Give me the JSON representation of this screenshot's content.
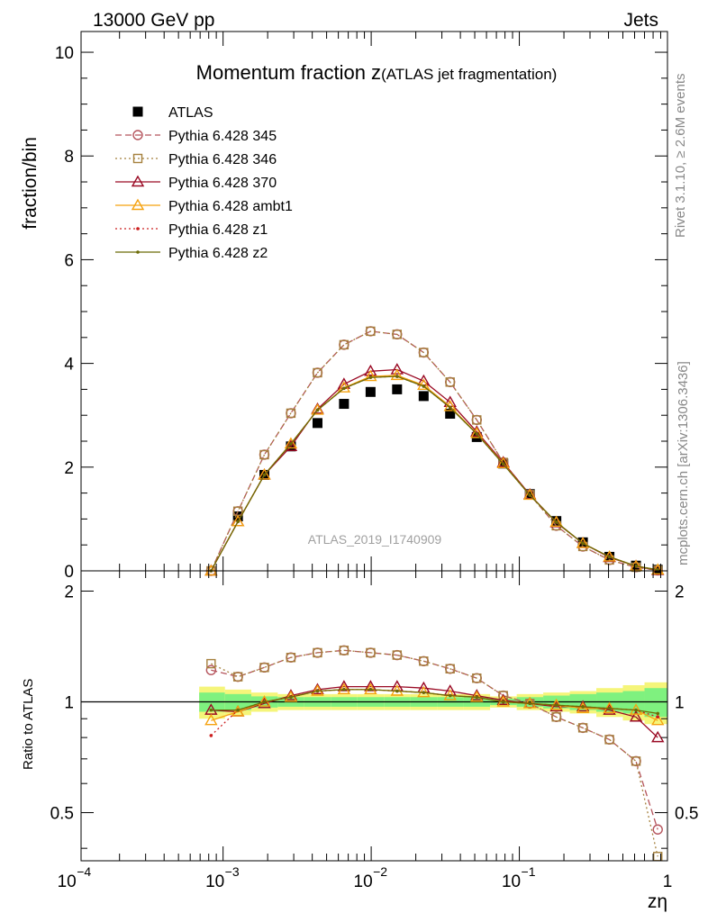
{
  "header": {
    "left": "13000 GeV pp",
    "right": "Jets"
  },
  "side_labels": {
    "rivet": "Rivet 3.1.10, ≥ 2.6M events",
    "mcplots": "mcplots.cern.ch [arXiv:1306.3436]"
  },
  "watermark": "ATLAS_2019_I1740909",
  "chart_data": [
    {
      "type": "scatter",
      "panel": "main",
      "title_main": "Momentum fraction z",
      "title_sub": "(ATLAS jet fragmentation)",
      "ylabel": "fraction/bin",
      "xlabel": "zη",
      "xscale": "log",
      "xlim": [
        0.00011,
        1.0
      ],
      "ylim": [
        0,
        10.4
      ],
      "yticks": [
        0,
        2,
        4,
        6,
        8,
        10
      ],
      "xticks": [
        {
          "value": 0.0001,
          "label": "10"
        },
        {
          "value": 0.001,
          "label": "10"
        },
        {
          "value": 0.01,
          "label": "10"
        },
        {
          "value": 0.1,
          "label": "10"
        },
        {
          "value": 1,
          "label": "1"
        }
      ],
      "xtick_exponents": [
        "−4",
        "−3",
        "−2",
        "−1",
        ""
      ],
      "legend_position": "top-left",
      "x": [
        0.00083,
        0.00126,
        0.0019,
        0.00287,
        0.00434,
        0.00655,
        0.0099,
        0.01495,
        0.0226,
        0.0341,
        0.0516,
        0.0779,
        0.1177,
        0.1778,
        0.2686,
        0.4058,
        0.613,
        0.86
      ],
      "series": [
        {
          "name": "ATLAS",
          "color": "#000000",
          "marker": "filled-square",
          "line": "none",
          "values": [
            null,
            1.05,
            1.85,
            2.4,
            2.85,
            3.22,
            3.45,
            3.5,
            3.37,
            3.03,
            2.58,
            2.07,
            1.48,
            0.96,
            0.55,
            0.27,
            0.1,
            0.02
          ]
        },
        {
          "name": "Pythia 6.428 345",
          "color": "#b5545c",
          "marker": "open-circle",
          "line": "dashed",
          "values": [
            0.0,
            1.15,
            2.24,
            3.04,
            3.82,
            4.36,
            4.62,
            4.56,
            4.21,
            3.64,
            2.91,
            2.09,
            1.47,
            0.87,
            0.47,
            0.21,
            0.07,
            0.01
          ]
        },
        {
          "name": "Pythia 6.428 346",
          "color": "#a5803d",
          "marker": "open-square",
          "line": "dotted",
          "values": [
            0.0,
            1.15,
            2.24,
            3.04,
            3.82,
            4.36,
            4.62,
            4.56,
            4.21,
            3.64,
            2.91,
            2.09,
            1.47,
            0.87,
            0.47,
            0.21,
            0.07,
            0.01
          ]
        },
        {
          "name": "Pythia 6.428 370",
          "color": "#9a0a24",
          "marker": "open-triangle",
          "line": "solid",
          "values": [
            0.0,
            0.95,
            1.85,
            2.4,
            3.12,
            3.6,
            3.85,
            3.88,
            3.66,
            3.25,
            2.68,
            2.09,
            1.47,
            0.93,
            0.53,
            0.26,
            0.09,
            0.01
          ]
        },
        {
          "name": "Pythia 6.428 ambt1",
          "color": "#f5a20f",
          "marker": "open-triangle",
          "line": "solid",
          "values": [
            0.0,
            0.95,
            1.85,
            2.45,
            3.1,
            3.53,
            3.75,
            3.77,
            3.58,
            3.17,
            2.65,
            2.07,
            1.46,
            0.94,
            0.53,
            0.27,
            0.09,
            0.02
          ]
        },
        {
          "name": "Pythia 6.428 z1",
          "color": "#cc2020",
          "marker": "small-dot",
          "line": "dotted",
          "values": [
            0.0,
            0.95,
            1.85,
            2.45,
            3.1,
            3.52,
            3.73,
            3.75,
            3.56,
            3.15,
            2.64,
            2.06,
            1.46,
            0.94,
            0.53,
            0.27,
            0.09,
            0.02
          ]
        },
        {
          "name": "Pythia 6.428 z2",
          "color": "#6b6b06",
          "marker": "small-dot",
          "line": "solid",
          "values": [
            0.0,
            0.95,
            1.85,
            2.45,
            3.1,
            3.52,
            3.73,
            3.75,
            3.56,
            3.15,
            2.64,
            2.06,
            1.46,
            0.94,
            0.53,
            0.27,
            0.09,
            0.02
          ]
        }
      ]
    },
    {
      "type": "line",
      "panel": "ratio",
      "ylabel": "Ratio to ATLAS",
      "xscale": "log",
      "xlim": [
        0.00011,
        1.0
      ],
      "ylim": [
        0.37,
        2.27
      ],
      "yticks": [
        0.5,
        1,
        2
      ],
      "ytick_labels": [
        "0.5",
        "1",
        "2"
      ],
      "band": {
        "x_edges": [
          0.00069,
          0.00103,
          0.00155,
          0.00234,
          0.00353,
          0.00534,
          0.00807,
          0.0122,
          0.0184,
          0.0278,
          0.042,
          0.0635,
          0.096,
          0.145,
          0.219,
          0.331,
          0.5,
          0.7,
          1.0
        ],
        "stat_halfwidth": [
          0.06,
          0.05,
          0.035,
          0.03,
          0.03,
          0.03,
          0.03,
          0.03,
          0.03,
          0.03,
          0.03,
          0.02,
          0.03,
          0.04,
          0.05,
          0.06,
          0.07,
          0.09
        ],
        "total_halfwidth": [
          0.1,
          0.08,
          0.06,
          0.05,
          0.05,
          0.05,
          0.05,
          0.05,
          0.05,
          0.05,
          0.05,
          0.035,
          0.05,
          0.06,
          0.07,
          0.09,
          0.11,
          0.13
        ],
        "inner_color": "#7ff17f",
        "outer_color": "#f5f57a"
      },
      "x": [
        0.00083,
        0.00126,
        0.0019,
        0.00287,
        0.00434,
        0.00655,
        0.0099,
        0.01495,
        0.0226,
        0.0341,
        0.0516,
        0.0779,
        0.1177,
        0.1778,
        0.2686,
        0.4058,
        0.613,
        0.86
      ],
      "series": [
        {
          "name": "Pythia 6.428 345",
          "values": [
            1.22,
            1.17,
            1.24,
            1.32,
            1.36,
            1.38,
            1.36,
            1.34,
            1.29,
            1.23,
            1.16,
            1.04,
            0.99,
            0.91,
            0.85,
            0.79,
            0.69,
            0.45
          ]
        },
        {
          "name": "Pythia 6.428 346",
          "values": [
            1.27,
            1.17,
            1.24,
            1.32,
            1.36,
            1.38,
            1.36,
            1.34,
            1.29,
            1.23,
            1.16,
            1.04,
            0.99,
            0.91,
            0.85,
            0.79,
            0.69,
            0.38
          ]
        },
        {
          "name": "Pythia 6.428 370",
          "values": [
            0.95,
            0.94,
            0.99,
            1.04,
            1.08,
            1.1,
            1.1,
            1.1,
            1.09,
            1.07,
            1.04,
            1.01,
            0.99,
            0.97,
            0.97,
            0.95,
            0.91,
            0.8
          ]
        },
        {
          "name": "Pythia 6.428 ambt1",
          "values": [
            0.89,
            0.94,
            1.0,
            1.03,
            1.07,
            1.08,
            1.08,
            1.07,
            1.06,
            1.04,
            1.03,
            1.0,
            0.99,
            0.98,
            0.96,
            0.96,
            0.95,
            0.89
          ]
        },
        {
          "name": "Pythia 6.428 z1",
          "values": [
            0.81,
            0.95,
            1.0,
            1.03,
            1.07,
            1.08,
            1.08,
            1.07,
            1.06,
            1.04,
            1.03,
            1.0,
            0.99,
            0.98,
            0.97,
            0.96,
            0.95,
            0.91
          ]
        },
        {
          "name": "Pythia 6.428 z2",
          "values": [
            0.95,
            0.95,
            1.0,
            1.03,
            1.07,
            1.08,
            1.08,
            1.07,
            1.06,
            1.04,
            1.03,
            1.0,
            0.99,
            0.98,
            0.97,
            0.96,
            0.95,
            0.93
          ]
        }
      ]
    }
  ]
}
